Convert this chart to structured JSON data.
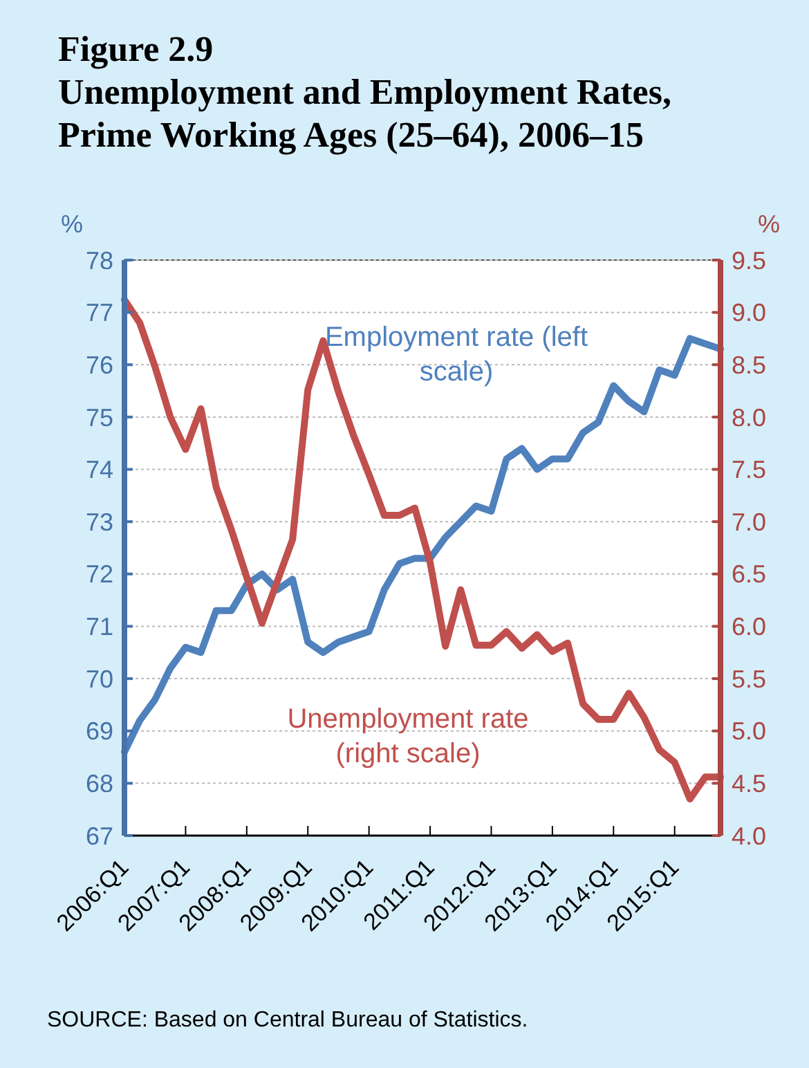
{
  "chart_data": {
    "type": "line",
    "title": "Figure 2.9",
    "subtitle": "Unemployment and Employment Rates, Prime Working Ages (25–64), 2006–15",
    "ylabel": "%",
    "y2label": "%",
    "categories": [
      "2006:Q1",
      null,
      null,
      null,
      "2007:Q1",
      null,
      null,
      null,
      "2008:Q1",
      null,
      null,
      null,
      "2009:Q1",
      null,
      null,
      null,
      "2010:Q1",
      null,
      null,
      null,
      "2011:Q1",
      null,
      null,
      null,
      "2012:Q1",
      null,
      null,
      null,
      "2013:Q1",
      null,
      null,
      null,
      "2014:Q1",
      null,
      null,
      null,
      "2015:Q1",
      null,
      null,
      null
    ],
    "series": [
      {
        "name": "Employment rate (left scale)",
        "color": "#4f81bd",
        "axis": "y",
        "values": [
          68.6,
          69.2,
          69.6,
          70.2,
          70.6,
          70.5,
          71.3,
          71.3,
          71.8,
          72.0,
          71.7,
          71.9,
          70.7,
          70.5,
          70.7,
          70.8,
          70.9,
          71.7,
          72.2,
          72.3,
          72.3,
          72.7,
          73.0,
          73.3,
          73.2,
          74.2,
          74.4,
          74.0,
          74.2,
          74.2,
          74.7,
          74.9,
          75.6,
          75.3,
          75.1,
          75.9,
          75.8,
          76.5,
          76.4,
          76.3
        ]
      },
      {
        "name": "Unemployment rate (right scale)",
        "color": "#c0504d",
        "axis": "y2",
        "values": [
          9.12,
          8.9,
          8.48,
          8.0,
          7.69,
          8.08,
          7.33,
          6.92,
          6.47,
          6.03,
          6.43,
          6.83,
          8.26,
          8.73,
          8.24,
          7.82,
          7.45,
          7.06,
          7.06,
          7.13,
          6.61,
          5.81,
          6.35,
          5.82,
          5.82,
          5.95,
          5.79,
          5.92,
          5.76,
          5.84,
          5.26,
          5.11,
          5.11,
          5.36,
          5.13,
          4.82,
          4.7,
          4.35,
          4.56,
          4.56
        ]
      }
    ],
    "ylim": [
      67,
      78
    ],
    "yticks": [
      67,
      68,
      69,
      70,
      71,
      72,
      73,
      74,
      75,
      76,
      77,
      78
    ],
    "y2lim": [
      4,
      9.5
    ],
    "y2ticks": [
      {
        "value": 4,
        "label": "4.0"
      },
      4.5,
      {
        "value": 5,
        "label": "5.0"
      },
      5.5,
      {
        "value": 6,
        "label": "6.0"
      },
      6.5,
      {
        "value": 7,
        "label": "7.0"
      },
      7.5,
      {
        "value": 8,
        "label": "8.0"
      },
      8.5,
      {
        "value": 9,
        "label": "9.0"
      },
      9.5
    ],
    "grid": "y",
    "annotations": [
      "SOURCE: Based on Central Bureau of Statistics."
    ]
  }
}
